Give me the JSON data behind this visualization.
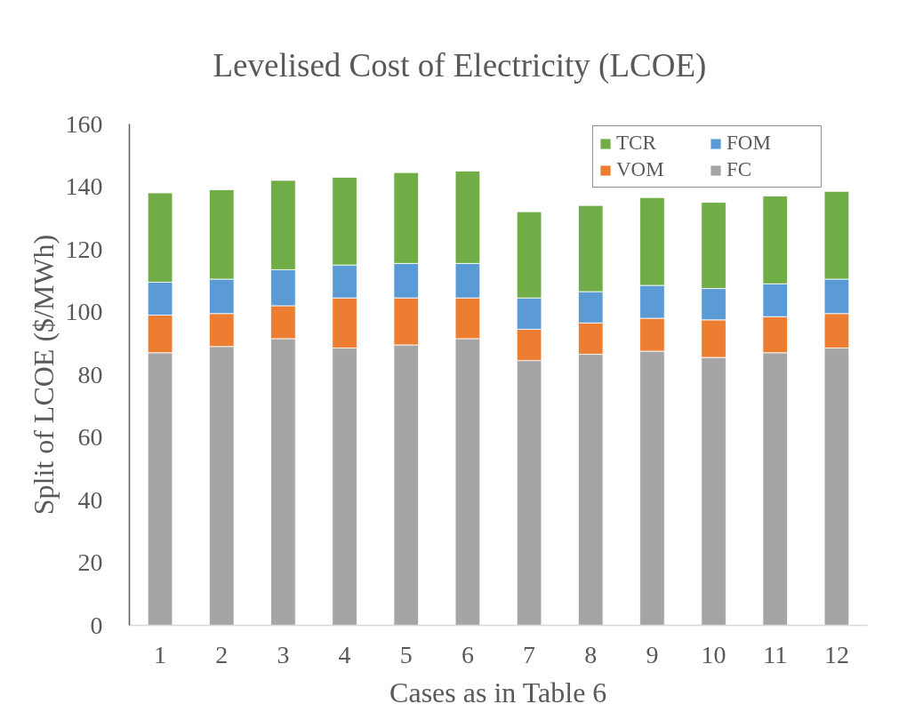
{
  "chart_data": {
    "type": "bar",
    "title": "Levelised Cost of Electricity (LCOE)",
    "xlabel": "Cases as in Table 6",
    "ylabel": "Split of LCOE ($/MWh)",
    "categories": [
      "1",
      "2",
      "3",
      "4",
      "5",
      "6",
      "7",
      "8",
      "9",
      "10",
      "11",
      "12"
    ],
    "stacked": true,
    "series": [
      {
        "name": "FC",
        "color": "#a5a5a5",
        "values": [
          87,
          89,
          91.5,
          88.5,
          89.5,
          91.5,
          84.5,
          86.5,
          87.5,
          85.5,
          87,
          88.5
        ]
      },
      {
        "name": "VOM",
        "color": "#ed7d31",
        "values": [
          12,
          10.5,
          10.5,
          16,
          15,
          13,
          10,
          10,
          10.5,
          12,
          11.5,
          11
        ]
      },
      {
        "name": "FOM",
        "color": "#5b9bd5",
        "values": [
          10.5,
          11,
          11.5,
          10.5,
          11,
          11,
          10,
          10,
          10.5,
          10,
          10.5,
          11
        ]
      },
      {
        "name": "TCR",
        "color": "#70ad47",
        "values": [
          28.5,
          28.5,
          28.5,
          28,
          29,
          29.5,
          27.5,
          27.5,
          28,
          27.5,
          28,
          28
        ]
      }
    ],
    "ylim": [
      0,
      160
    ],
    "yticks": [
      0,
      20,
      40,
      60,
      80,
      100,
      120,
      140,
      160
    ],
    "legend": "top right"
  }
}
